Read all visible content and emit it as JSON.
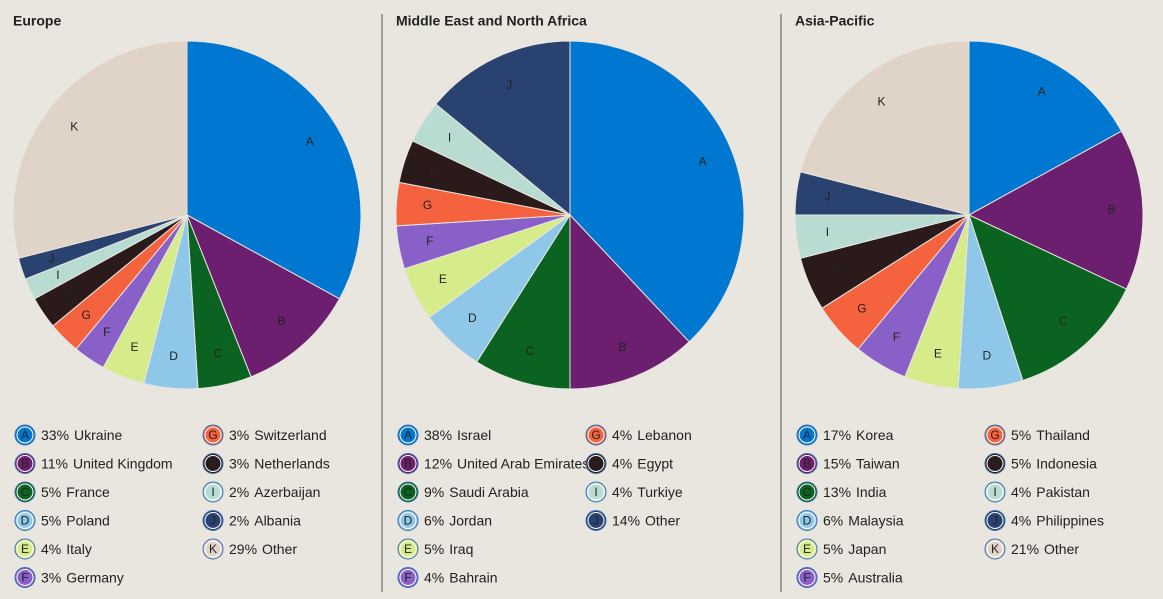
{
  "chart_data": [
    {
      "type": "pie",
      "title": "Europe",
      "labels": [
        "A",
        "B",
        "C",
        "D",
        "E",
        "F",
        "G",
        "H",
        "I",
        "J",
        "K"
      ],
      "categories": [
        "Ukraine",
        "United Kingdom",
        "France",
        "Poland",
        "Italy",
        "Germany",
        "Switzerland",
        "Netherlands",
        "Azerbaijan",
        "Albania",
        "Other"
      ],
      "values": [
        33,
        11,
        5,
        5,
        4,
        3,
        3,
        3,
        2,
        2,
        29
      ],
      "value_labels": [
        "33%",
        "11%",
        "5%",
        "5%",
        "4%",
        "3%",
        "3%",
        "3%",
        "2%",
        "2%",
        "29%"
      ],
      "colors": [
        "#0077d0",
        "#6b1f6e",
        "#0a6320",
        "#8fc7e8",
        "#d6ec8a",
        "#8860c8",
        "#f5623e",
        "#2b1a1a",
        "#b9dcd2",
        "#2a4270",
        "#e0d3c8"
      ]
    },
    {
      "type": "pie",
      "title": "Middle East and North Africa",
      "labels": [
        "A",
        "B",
        "C",
        "D",
        "E",
        "F",
        "G",
        "H",
        "I",
        "J"
      ],
      "categories": [
        "Israel",
        "United Arab Emirates",
        "Saudi Arabia",
        "Jordan",
        "Iraq",
        "Bahrain",
        "Lebanon",
        "Egypt",
        "Turkiye",
        "Other"
      ],
      "values": [
        38,
        12,
        9,
        6,
        5,
        4,
        4,
        4,
        4,
        14
      ],
      "value_labels": [
        "38%",
        "12%",
        "9%",
        "6%",
        "5%",
        "4%",
        "4%",
        "4%",
        "4%",
        "14%"
      ],
      "colors": [
        "#0077d0",
        "#6b1f6e",
        "#0a6320",
        "#8fc7e8",
        "#d6ec8a",
        "#8860c8",
        "#f5623e",
        "#2b1a1a",
        "#b9dcd2",
        "#2a4270"
      ]
    },
    {
      "type": "pie",
      "title": "Asia-Pacific",
      "labels": [
        "A",
        "B",
        "C",
        "D",
        "E",
        "F",
        "G",
        "H",
        "I",
        "J",
        "K"
      ],
      "categories": [
        "Korea",
        "Taiwan",
        "India",
        "Malaysia",
        "Japan",
        "Australia",
        "Thailand",
        "Indonesia",
        "Pakistan",
        "Philippines",
        "Other"
      ],
      "values": [
        17,
        15,
        13,
        6,
        5,
        5,
        5,
        5,
        4,
        4,
        21
      ],
      "value_labels": [
        "17%",
        "15%",
        "13%",
        "6%",
        "5%",
        "5%",
        "5%",
        "5%",
        "4%",
        "4%",
        "21%"
      ],
      "colors": [
        "#0077d0",
        "#6b1f6e",
        "#0a6320",
        "#8fc7e8",
        "#d6ec8a",
        "#8860c8",
        "#f5623e",
        "#2b1a1a",
        "#b9dcd2",
        "#2a4270",
        "#e0d3c8"
      ]
    }
  ]
}
